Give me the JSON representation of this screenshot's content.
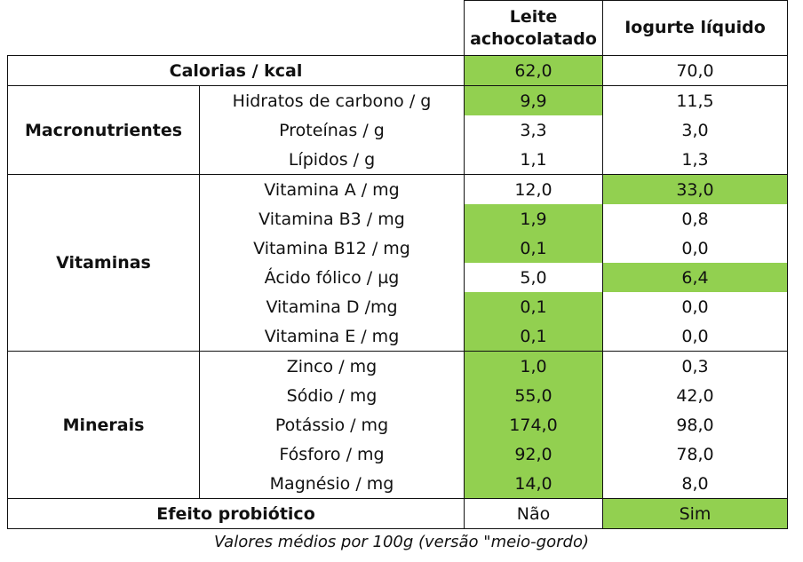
{
  "columns": {
    "col1_line1": "Leite",
    "col1_line2": "achocolatado",
    "col2": "Iogurte líquido"
  },
  "colors": {
    "highlight": "#92d050"
  },
  "calorias": {
    "label": "Calorias / kcal",
    "v1": "62,0",
    "v2": "70,0"
  },
  "groups": {
    "macro": {
      "label": "Macronutrientes",
      "rows": [
        {
          "label": "Hidratos de carbono / g",
          "v1": "9,9",
          "v2": "11,5"
        },
        {
          "label": "Proteínas / g",
          "v1": "3,3",
          "v2": "3,0"
        },
        {
          "label": "Lípidos / g",
          "v1": "1,1",
          "v2": "1,3"
        }
      ]
    },
    "vit": {
      "label": "Vitaminas",
      "rows": [
        {
          "label": "Vitamina A / mg",
          "v1": "12,0",
          "v2": "33,0"
        },
        {
          "label": "Vitamina B3 / mg",
          "v1": "1,9",
          "v2": "0,8"
        },
        {
          "label": "Vitamina B12 / mg",
          "v1": "0,1",
          "v2": "0,0"
        },
        {
          "label": "Ácido fólico / µg",
          "v1": "5,0",
          "v2": "6,4"
        },
        {
          "label": "Vitamina D /mg",
          "v1": "0,1",
          "v2": "0,0"
        },
        {
          "label": "Vitamina E / mg",
          "v1": "0,1",
          "v2": "0,0"
        }
      ]
    },
    "min": {
      "label": "Minerais",
      "rows": [
        {
          "label": "Zinco / mg",
          "v1": "1,0",
          "v2": "0,3"
        },
        {
          "label": "Sódio / mg",
          "v1": "55,0",
          "v2": "42,0"
        },
        {
          "label": "Potássio / mg",
          "v1": "174,0",
          "v2": "98,0"
        },
        {
          "label": "Fósforo / mg",
          "v1": "92,0",
          "v2": "78,0"
        },
        {
          "label": "Magnésio / mg",
          "v1": "14,0",
          "v2": "8,0"
        }
      ]
    }
  },
  "probiotico": {
    "label": "Efeito probiótico",
    "v1": "Não",
    "v2": "Sim"
  },
  "caption": "Valores médios por 100g (versão \"meio-gordo)"
}
